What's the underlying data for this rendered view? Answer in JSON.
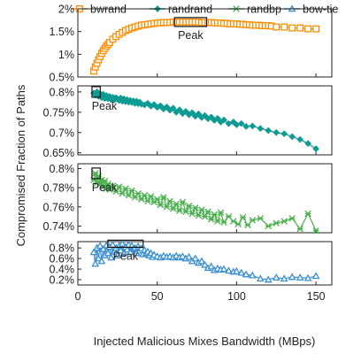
{
  "figure": {
    "ylabel": "Compromised Fraction of Paths",
    "xlabel": "Injected Malicious Mixes Bandwidth (MBps)",
    "peak_label": "Peak"
  },
  "legend": [
    {
      "name": "bwrand",
      "color": "#ff8c00",
      "marker": "square"
    },
    {
      "name": "randrand",
      "color": "#0f9b94",
      "marker": "diamond"
    },
    {
      "name": "randbp",
      "color": "#4caf50",
      "marker": "star"
    },
    {
      "name": "bow-tie",
      "color": "#3a8fd0",
      "marker": "triangle"
    }
  ],
  "x_axis": {
    "ticks": [
      "0",
      "50",
      "100",
      "150"
    ],
    "tick_values": [
      0,
      50,
      100,
      150
    ],
    "range": [
      0,
      160
    ]
  },
  "chart_data": [
    {
      "type": "line",
      "series_name": "bwrand",
      "y_ticks": [
        "0.5%",
        "1%",
        "1.5%",
        "2%"
      ],
      "y_tick_values": [
        0.5,
        1.0,
        1.5,
        2.0
      ],
      "ylim": [
        0.5,
        2.0
      ],
      "peak_range": [
        62,
        80
      ],
      "x": [
        10,
        11,
        12,
        13,
        14,
        15,
        16,
        17,
        18,
        19,
        20,
        22,
        24,
        26,
        28,
        30,
        32,
        34,
        36,
        38,
        40,
        42,
        44,
        46,
        48,
        50,
        52,
        54,
        56,
        58,
        60,
        62,
        64,
        66,
        68,
        70,
        72,
        74,
        76,
        78,
        80,
        82,
        84,
        86,
        88,
        90,
        92,
        94,
        96,
        98,
        100,
        102,
        104,
        106,
        108,
        110,
        112,
        114,
        116,
        118,
        120,
        122,
        125,
        130,
        135,
        140,
        145,
        150
      ],
      "values": [
        0.63,
        0.72,
        0.8,
        0.88,
        0.95,
        1.02,
        1.08,
        1.13,
        1.18,
        1.22,
        1.26,
        1.33,
        1.39,
        1.44,
        1.48,
        1.52,
        1.55,
        1.58,
        1.6,
        1.62,
        1.64,
        1.65,
        1.66,
        1.67,
        1.68,
        1.69,
        1.69,
        1.7,
        1.7,
        1.7,
        1.71,
        1.71,
        1.71,
        1.71,
        1.71,
        1.71,
        1.71,
        1.71,
        1.71,
        1.7,
        1.7,
        1.7,
        1.7,
        1.69,
        1.69,
        1.69,
        1.68,
        1.68,
        1.67,
        1.67,
        1.67,
        1.66,
        1.66,
        1.65,
        1.65,
        1.64,
        1.64,
        1.64,
        1.63,
        1.63,
        1.63,
        1.62,
        1.6,
        1.6,
        1.58,
        1.58,
        1.56,
        1.56
      ]
    },
    {
      "type": "line",
      "series_name": "randrand",
      "y_ticks": [
        "0.65%",
        "0.7%",
        "0.75%",
        "0.8%"
      ],
      "y_tick_values": [
        0.65,
        0.7,
        0.75,
        0.8
      ],
      "ylim": [
        0.645,
        0.815
      ],
      "peak_range": [
        10,
        13
      ],
      "x": [
        10,
        11,
        12,
        13,
        14,
        15,
        16,
        17,
        18,
        19,
        20,
        21,
        22,
        23,
        24,
        25,
        26,
        27,
        28,
        29,
        30,
        31,
        32,
        33,
        34,
        35,
        36,
        37,
        38,
        39,
        40,
        42,
        44,
        46,
        48,
        50,
        52,
        54,
        56,
        58,
        60,
        62,
        64,
        66,
        68,
        70,
        72,
        74,
        76,
        78,
        80,
        82,
        84,
        86,
        88,
        90,
        92,
        95,
        98,
        100,
        103,
        106,
        110,
        115,
        120,
        125,
        130,
        135,
        140,
        145,
        150
      ],
      "values": [
        0.797,
        0.792,
        0.8,
        0.789,
        0.796,
        0.786,
        0.794,
        0.784,
        0.791,
        0.783,
        0.789,
        0.781,
        0.787,
        0.78,
        0.786,
        0.782,
        0.779,
        0.785,
        0.777,
        0.783,
        0.776,
        0.781,
        0.775,
        0.779,
        0.774,
        0.778,
        0.772,
        0.777,
        0.771,
        0.775,
        0.77,
        0.768,
        0.772,
        0.765,
        0.769,
        0.762,
        0.766,
        0.758,
        0.763,
        0.755,
        0.76,
        0.75,
        0.756,
        0.747,
        0.752,
        0.744,
        0.749,
        0.74,
        0.746,
        0.737,
        0.742,
        0.734,
        0.738,
        0.73,
        0.735,
        0.726,
        0.731,
        0.722,
        0.726,
        0.719,
        0.722,
        0.715,
        0.716,
        0.71,
        0.705,
        0.7,
        0.697,
        0.69,
        0.683,
        0.673,
        0.66
      ]
    },
    {
      "type": "line",
      "series_name": "randbp",
      "y_ticks": [
        "0.74%",
        "0.76%",
        "0.78%",
        "0.8%"
      ],
      "y_tick_values": [
        0.74,
        0.76,
        0.78,
        0.8
      ],
      "ylim": [
        0.733,
        0.805
      ],
      "peak_range": [
        10,
        13
      ],
      "x": [
        10,
        11,
        12,
        13,
        14,
        15,
        16,
        17,
        18,
        19,
        20,
        22,
        24,
        26,
        28,
        30,
        32,
        34,
        36,
        38,
        40,
        42,
        44,
        46,
        48,
        50,
        52,
        54,
        56,
        58,
        60,
        62,
        64,
        66,
        68,
        70,
        72,
        74,
        76,
        78,
        80,
        82,
        84,
        86,
        88,
        90,
        92,
        95,
        98,
        101,
        104,
        107,
        110,
        115,
        120,
        125,
        130,
        135,
        140,
        145,
        150
      ],
      "values": [
        0.788,
        0.795,
        0.785,
        0.792,
        0.784,
        0.788,
        0.781,
        0.787,
        0.779,
        0.784,
        0.778,
        0.782,
        0.776,
        0.781,
        0.774,
        0.779,
        0.772,
        0.777,
        0.77,
        0.774,
        0.768,
        0.772,
        0.766,
        0.771,
        0.765,
        0.768,
        0.762,
        0.77,
        0.76,
        0.766,
        0.758,
        0.763,
        0.756,
        0.765,
        0.755,
        0.761,
        0.753,
        0.759,
        0.751,
        0.757,
        0.75,
        0.755,
        0.747,
        0.752,
        0.745,
        0.754,
        0.744,
        0.75,
        0.745,
        0.742,
        0.749,
        0.741,
        0.746,
        0.748,
        0.74,
        0.743,
        0.745,
        0.748,
        0.737,
        0.753,
        0.735
      ]
    },
    {
      "type": "line",
      "series_name": "bow-tie",
      "y_ticks": [
        "0.2%",
        "0.4%",
        "0.6%",
        "0.8%"
      ],
      "y_tick_values": [
        0.2,
        0.4,
        0.6,
        0.8
      ],
      "ylim": [
        0.1,
        0.92
      ],
      "peak_range": [
        20,
        40
      ],
      "x": [
        10,
        11,
        12,
        13,
        14,
        15,
        16,
        17,
        18,
        19,
        20,
        21,
        22,
        23,
        24,
        25,
        26,
        27,
        28,
        29,
        30,
        31,
        32,
        33,
        34,
        35,
        36,
        37,
        38,
        39,
        40,
        41,
        42,
        43,
        44,
        45,
        46,
        47,
        48,
        50,
        52,
        54,
        56,
        58,
        60,
        62,
        64,
        66,
        68,
        70,
        72,
        74,
        76,
        78,
        80,
        82,
        84,
        86,
        88,
        90,
        92,
        95,
        98,
        100,
        103,
        106,
        110,
        115,
        120,
        125,
        130,
        135,
        140,
        145,
        150
      ],
      "values": [
        0.72,
        0.5,
        0.8,
        0.6,
        0.84,
        0.55,
        0.78,
        0.66,
        0.85,
        0.7,
        0.82,
        0.62,
        0.86,
        0.73,
        0.8,
        0.66,
        0.84,
        0.75,
        0.88,
        0.7,
        0.82,
        0.77,
        0.86,
        0.72,
        0.84,
        0.78,
        0.8,
        0.7,
        0.83,
        0.75,
        0.79,
        0.68,
        0.76,
        0.7,
        0.73,
        0.66,
        0.7,
        0.63,
        0.67,
        0.64,
        0.62,
        0.65,
        0.63,
        0.64,
        0.62,
        0.65,
        0.62,
        0.64,
        0.6,
        0.63,
        0.55,
        0.6,
        0.52,
        0.55,
        0.48,
        0.42,
        0.45,
        0.38,
        0.41,
        0.39,
        0.4,
        0.37,
        0.35,
        0.36,
        0.33,
        0.3,
        0.28,
        0.22,
        0.2,
        0.24,
        0.22,
        0.25,
        0.24,
        0.23,
        0.27
      ]
    }
  ]
}
